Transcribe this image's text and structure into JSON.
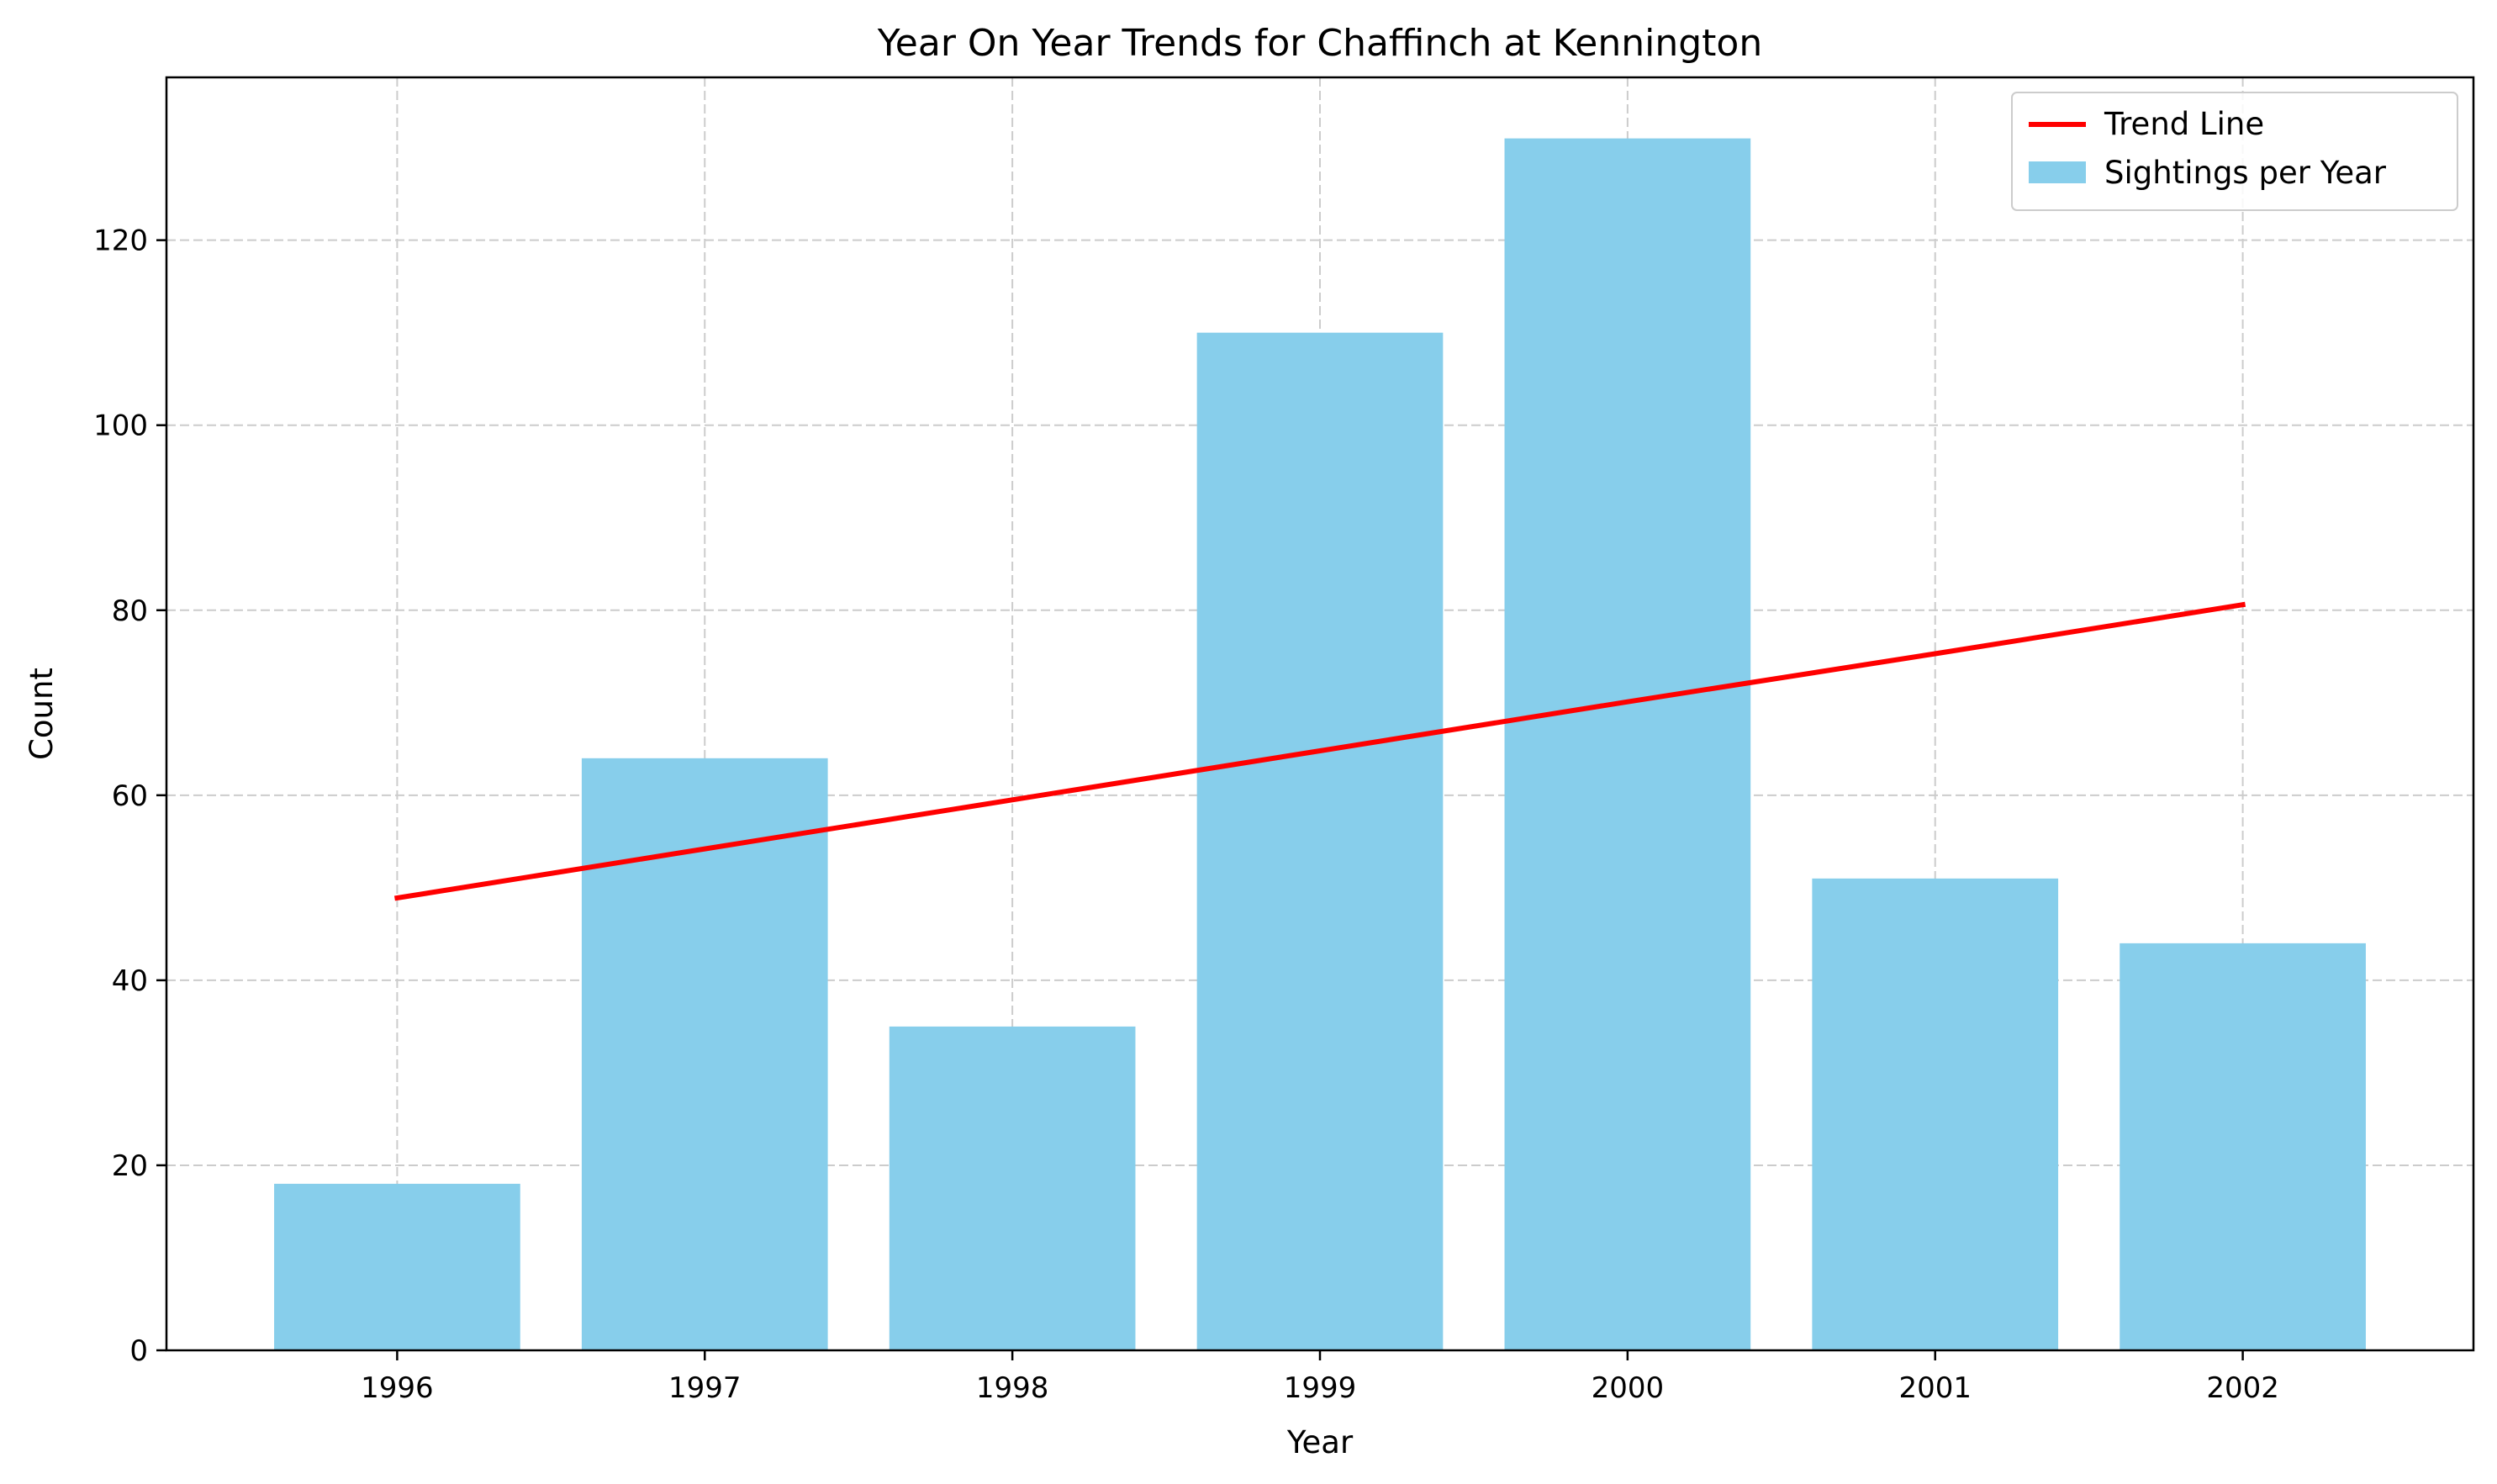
{
  "chart_data": {
    "type": "bar",
    "title": "Year On Year Trends for Chaffinch at Kennington",
    "xlabel": "Year",
    "ylabel": "Count",
    "categories": [
      "1996",
      "1997",
      "1998",
      "1999",
      "2000",
      "2001",
      "2002"
    ],
    "series": [
      {
        "name": "Sightings per Year",
        "type": "bar",
        "color": "#87CEEB",
        "values": [
          18,
          64,
          35,
          110,
          131,
          51,
          44
        ]
      },
      {
        "name": "Trend Line",
        "type": "line",
        "color": "#FF0000",
        "values": [
          48.9,
          54.2,
          59.5,
          64.8,
          70.1,
          75.3,
          80.6
        ]
      }
    ],
    "ylim": [
      0,
      137.6
    ],
    "yticks": [
      0,
      20,
      40,
      60,
      80,
      100,
      120
    ],
    "grid": true,
    "legend_position": "top-right"
  }
}
